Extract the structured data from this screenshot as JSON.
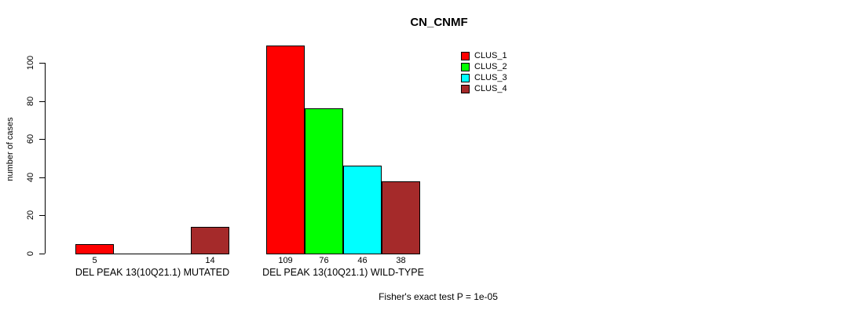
{
  "chart_data": {
    "type": "bar",
    "title": "CN_CNMF",
    "ylabel": "number of cases",
    "xlabel": "",
    "ylim": [
      0,
      100
    ],
    "yticks": [
      0,
      20,
      40,
      60,
      80,
      100
    ],
    "grid": false,
    "legend_position": "top-right",
    "bar_value_labels": true,
    "zero_bars_unlabeled": true,
    "categories": [
      "DEL PEAK 13(10Q21.1) MUTATED",
      "DEL PEAK 13(10Q21.1) WILD-TYPE"
    ],
    "series": [
      {
        "name": "CLUS_1",
        "color": "#FF0000",
        "values": [
          5,
          109
        ]
      },
      {
        "name": "CLUS_2",
        "color": "#00FF00",
        "values": [
          0,
          76
        ]
      },
      {
        "name": "CLUS_3",
        "color": "#00FFFF",
        "values": [
          0,
          46
        ]
      },
      {
        "name": "CLUS_4",
        "color": "#A52A2A",
        "values": [
          14,
          38
        ]
      }
    ],
    "annotation": "Fisher's exact test P = 1e-05",
    "axis_color": "#000000",
    "background_color": "#FFFFFF"
  }
}
